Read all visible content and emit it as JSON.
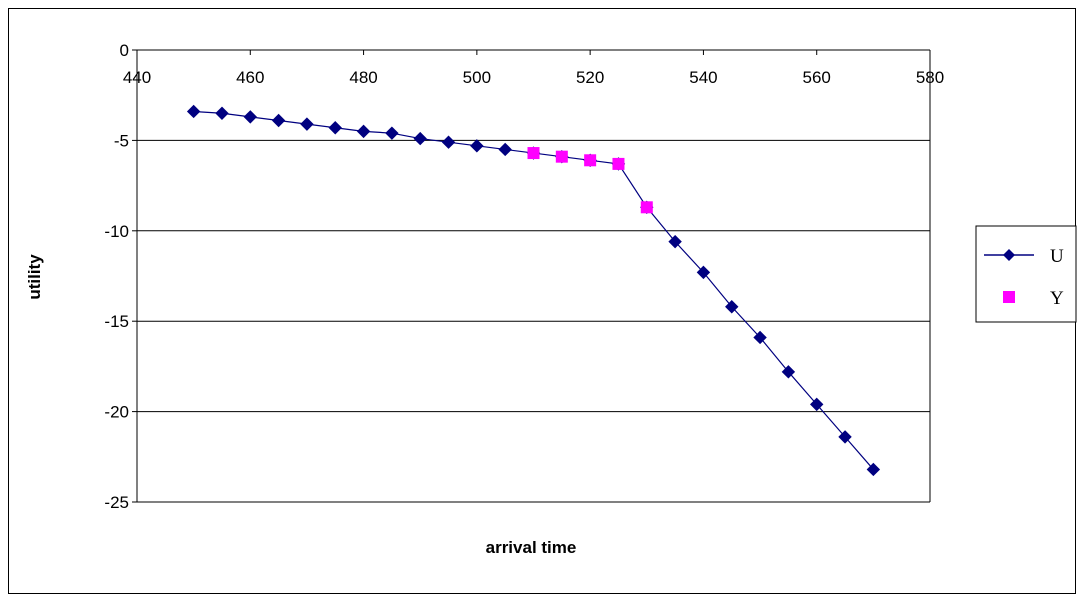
{
  "chart_data": {
    "type": "line",
    "title": "",
    "xlabel": "arrival time",
    "ylabel": "utility",
    "xlim": [
      440,
      580
    ],
    "ylim": [
      -25,
      0
    ],
    "xticks": [
      440,
      460,
      480,
      500,
      520,
      540,
      560,
      580
    ],
    "yticks": [
      0,
      -5,
      -10,
      -15,
      -20,
      -25
    ],
    "grid": "horizontal",
    "legend_position": "right",
    "series": [
      {
        "name": "U",
        "style": "line-diamond",
        "color": "#000080",
        "x": [
          450,
          455,
          460,
          465,
          470,
          475,
          480,
          485,
          490,
          495,
          500,
          505,
          510,
          515,
          520,
          525,
          530,
          535,
          540,
          545,
          550,
          555,
          560,
          565,
          570
        ],
        "y": [
          -3.4,
          -3.5,
          -3.7,
          -3.9,
          -4.1,
          -4.3,
          -4.5,
          -4.6,
          -4.9,
          -5.1,
          -5.3,
          -5.5,
          -5.7,
          -5.9,
          -6.1,
          -6.3,
          -8.7,
          -10.6,
          -12.3,
          -14.2,
          -15.9,
          -17.8,
          -19.6,
          -21.4,
          -23.2
        ]
      },
      {
        "name": "Y",
        "style": "square-marker",
        "color": "#ff00ff",
        "x": [
          510,
          515,
          520,
          525,
          530
        ],
        "y": [
          -5.7,
          -5.9,
          -6.1,
          -6.3,
          -8.7
        ]
      }
    ]
  }
}
